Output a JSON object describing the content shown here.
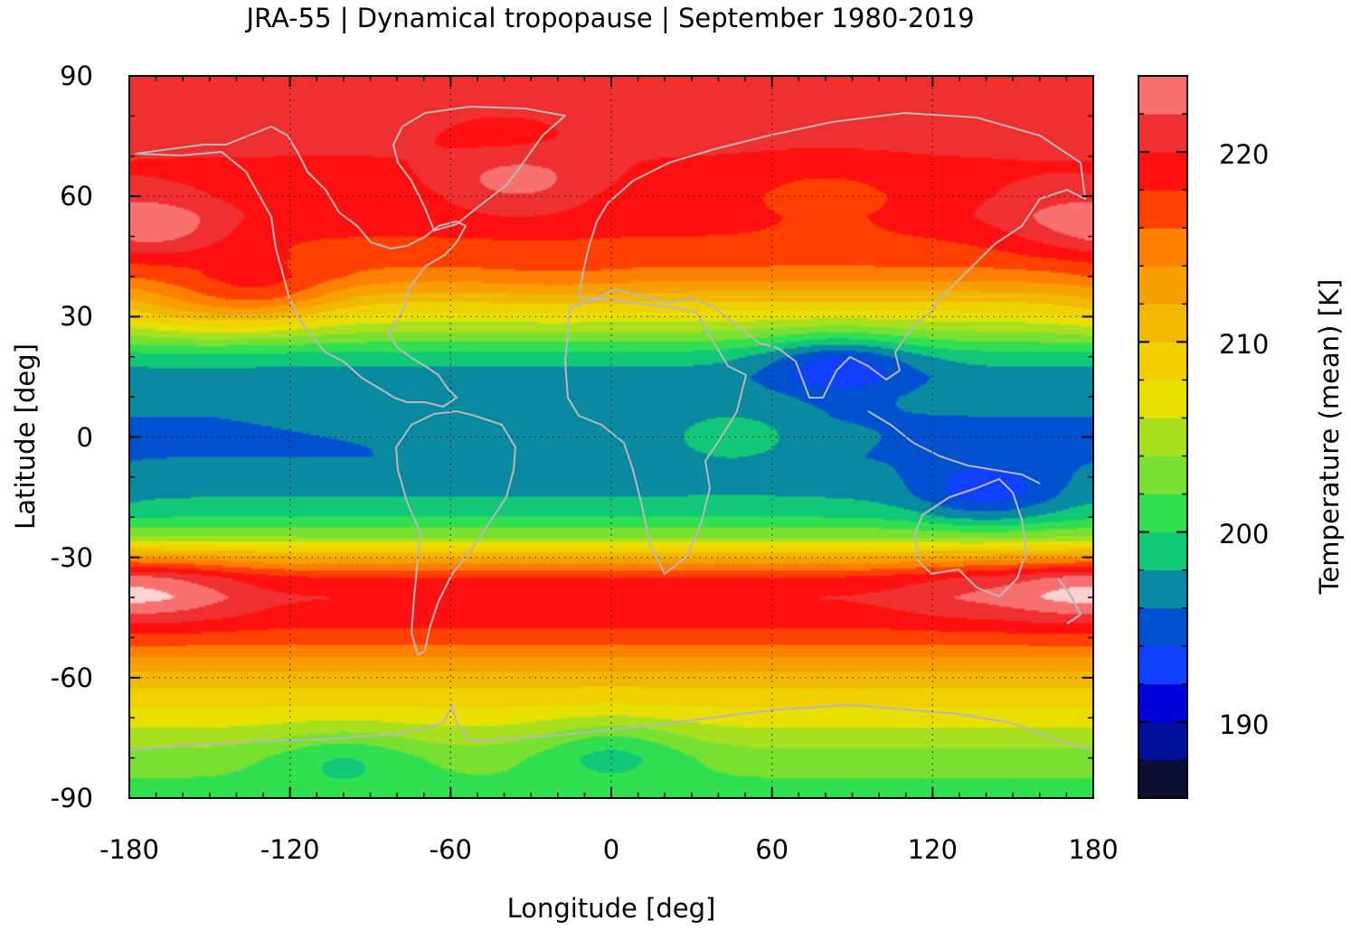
{
  "chart_data": {
    "type": "heatmap",
    "title": "JRA-55 | Dynamical tropopause | September 1980-2019",
    "xlabel": "Longitude [deg]",
    "ylabel": "Latitude [deg]",
    "xlim": [
      -180,
      180
    ],
    "ylim": [
      -90,
      90
    ],
    "x_ticks": [
      -180,
      -120,
      -60,
      0,
      60,
      120,
      180
    ],
    "y_ticks": [
      90,
      60,
      30,
      0,
      -30,
      -60,
      -90
    ],
    "x_tick_labels": [
      "-180",
      "-120",
      "-60",
      "0",
      "60",
      "120",
      "180"
    ],
    "y_tick_labels": [
      "90",
      "60",
      "30",
      "0",
      "-30",
      "-60",
      "-90"
    ],
    "grid": true,
    "colorbar": {
      "label": "Temperature (mean) [K]",
      "range": [
        186,
        224
      ],
      "levels": [
        186,
        188,
        190,
        192,
        194,
        196,
        198,
        200,
        202,
        204,
        206,
        208,
        210,
        212,
        214,
        216,
        218,
        220,
        222,
        224
      ],
      "ticks": [
        190,
        200,
        210,
        220
      ],
      "tick_labels": [
        "190",
        "200",
        "210",
        "220"
      ],
      "colors": [
        "#0d1030",
        "#000e9a",
        "#0000d8",
        "#0f3fff",
        "#0051cf",
        "#0a8aa0",
        "#10c878",
        "#30e050",
        "#78e030",
        "#a8e020",
        "#e8e000",
        "#f0d000",
        "#f0b800",
        "#f8a000",
        "#ff8000",
        "#ff4000",
        "#ff1010",
        "#f03030",
        "#f87070",
        "#ffd0d0"
      ]
    },
    "zonal_mean_profile": {
      "lat": [
        -90,
        -80,
        -70,
        -60,
        -50,
        -45,
        -40,
        -35,
        -30,
        -25,
        -20,
        -15,
        -10,
        -5,
        0,
        5,
        10,
        15,
        20,
        25,
        30,
        35,
        40,
        45,
        50,
        55,
        60,
        70,
        80,
        90
      ],
      "temperature": [
        201,
        203,
        207,
        211,
        217,
        219,
        220,
        218,
        212,
        204,
        200,
        198,
        197,
        196,
        196,
        196,
        197,
        197,
        199,
        203,
        207,
        211,
        215,
        217,
        218,
        219,
        219,
        220,
        221,
        221
      ]
    },
    "anomalies": [
      {
        "lon": 85,
        "lat": 18,
        "temperature": 193
      },
      {
        "lon": 140,
        "lat": -14,
        "temperature": 193
      },
      {
        "lon": 45,
        "lat": 0,
        "temperature": 199
      },
      {
        "lon": -35,
        "lat": 64,
        "temperature": 223
      },
      {
        "lon": -40,
        "lat": 75,
        "temperature": 219
      },
      {
        "lon": -170,
        "lat": 52,
        "temperature": 223
      },
      {
        "lon": 160,
        "lat": 55,
        "temperature": 221
      },
      {
        "lon": -160,
        "lat": -38,
        "temperature": 222
      },
      {
        "lon": 170,
        "lat": -38,
        "temperature": 223
      },
      {
        "lon": 130,
        "lat": -38,
        "temperature": 221
      },
      {
        "lon": 80,
        "lat": 60,
        "temperature": 217
      },
      {
        "lon": -130,
        "lat": 35,
        "temperature": 216
      },
      {
        "lon": -20,
        "lat": 38,
        "temperature": 214
      },
      {
        "lon": -160,
        "lat": 32,
        "temperature": 211
      },
      {
        "lon": 0,
        "lat": -78,
        "temperature": 200
      },
      {
        "lon": -100,
        "lat": -80,
        "temperature": 200
      }
    ],
    "coastline_color": "#b8b8b8"
  }
}
